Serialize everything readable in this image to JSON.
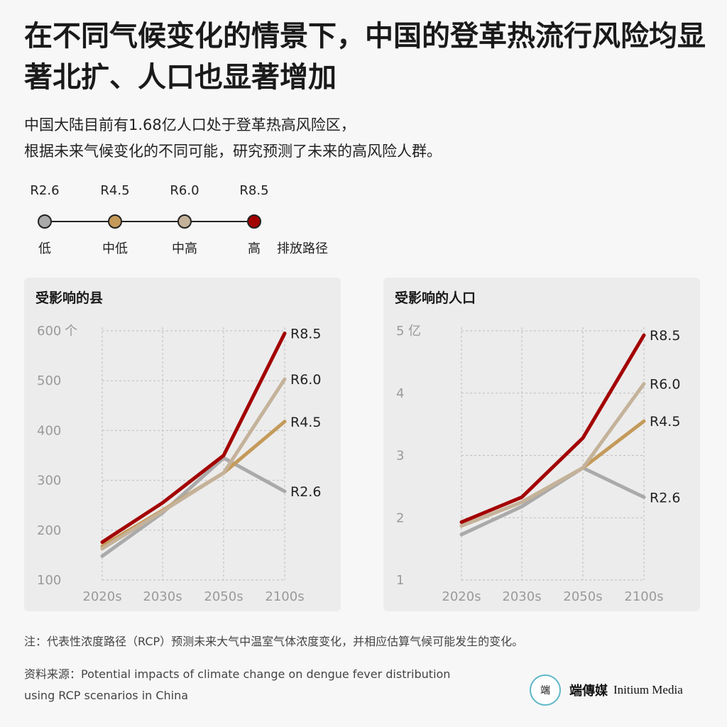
{
  "title": "在不同气候变化的情景下，中国的登革热流行风险均显著北扩、人口也显著增加",
  "subtitle_line1": "中国大陆目前有1.68亿人口处于登革热高风险区，",
  "subtitle_line2": "根据未来气候变化的不同可能，研究预测了未来的高风险人群。",
  "legend": {
    "items": [
      {
        "code": "R2.6",
        "label": "低",
        "color": "#aaaaaa"
      },
      {
        "code": "R4.5",
        "label": "中低",
        "color": "#c49a5a"
      },
      {
        "code": "R6.0",
        "label": "中高",
        "color": "#c4b29a"
      },
      {
        "code": "R8.5",
        "label": "高",
        "color": "#a30000"
      }
    ],
    "path_label": "排放路径"
  },
  "chart_data": [
    {
      "type": "line",
      "title": "受影响的县",
      "categories": [
        "2020s",
        "2030s",
        "2050s",
        "2100s"
      ],
      "y_unit": "个",
      "ylim": [
        100,
        600
      ],
      "yticks": [
        100,
        200,
        300,
        400,
        500,
        600
      ],
      "grid": true,
      "series": [
        {
          "name": "R2.6",
          "color": "#aaaaaa",
          "values": [
            148,
            235,
            345,
            278
          ]
        },
        {
          "name": "R4.5",
          "color": "#c49a5a",
          "values": [
            168,
            240,
            315,
            418
          ]
        },
        {
          "name": "R6.0",
          "color": "#c4b29a",
          "values": [
            163,
            238,
            315,
            503
          ]
        },
        {
          "name": "R8.5",
          "color": "#a30000",
          "values": [
            176,
            255,
            350,
            595
          ]
        }
      ]
    },
    {
      "type": "line",
      "title": "受影响的人口",
      "categories": [
        "2020s",
        "2030s",
        "2050s",
        "2100s"
      ],
      "y_unit": "亿",
      "ylim": [
        1,
        5
      ],
      "yticks": [
        1,
        2,
        3,
        4,
        5
      ],
      "grid": true,
      "series": [
        {
          "name": "R2.6",
          "color": "#aaaaaa",
          "values": [
            1.73,
            2.18,
            2.8,
            2.33
          ]
        },
        {
          "name": "R4.5",
          "color": "#c49a5a",
          "values": [
            1.87,
            2.25,
            2.8,
            3.55
          ]
        },
        {
          "name": "R6.0",
          "color": "#c4b29a",
          "values": [
            1.87,
            2.25,
            2.8,
            4.15
          ]
        },
        {
          "name": "R8.5",
          "color": "#a30000",
          "values": [
            1.93,
            2.33,
            3.28,
            4.93
          ]
        }
      ]
    }
  ],
  "note": "注：代表性浓度路径（RCP）预测未来大气中温室气体浓度变化，并相应估算气候可能发生的变化。",
  "source_line1": "资料来源：Potential impacts of climate change on dengue fever distribution",
  "source_line2": "using RCP scenarios in China",
  "brand": {
    "logo_text": "端",
    "cn": "端傳媒",
    "en": "Initium Media"
  }
}
